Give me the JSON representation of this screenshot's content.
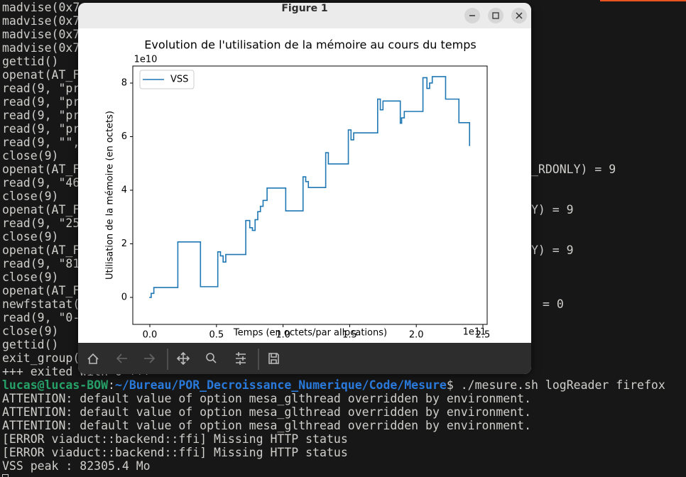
{
  "terminal": {
    "lines": [
      "madvise(0x7",
      "madvise(0x7",
      "madvise(0x7",
      "madvise(0x7",
      "gettid()",
      "openat(AT_F",
      "read(9, \"pr",
      "read(9, \"pr",
      "read(9, \"pr",
      "read(9, \"pr",
      "read(9, \"\",",
      "close(9)",
      "openat(AT_F",
      "read(9, \"46",
      "close(9)",
      "openat(AT_F",
      "read(9, \"25",
      "close(9)",
      "openat(AT_F",
      "read(9, \"81",
      "close(9)",
      "openat(AT_F",
      "newfstatat(",
      "read(9, \"0-",
      "close(9)",
      "gettid()",
      "exit_group(",
      "+++ exited with 0 +++"
    ],
    "right_fragments": [
      "_RDONLY) = 9",
      "Y) = 9",
      "Y) = 9",
      "= 0"
    ],
    "prompt": {
      "user": "lucas@lucas-BOW",
      "sep": ":",
      "path": "~/Bureau/POR_Decroissance_Numerique/Code/Mesure",
      "command": "$ ./mesure.sh logReader firefox"
    },
    "output": [
      "ATTENTION: default value of option mesa_glthread overridden by environment.",
      "ATTENTION: default value of option mesa_glthread overridden by environment.",
      "ATTENTION: default value of option mesa_glthread overridden by environment.",
      "[ERROR viaduct::backend::ffi] Missing HTTP status",
      "[ERROR viaduct::backend::ffi] Missing HTTP status",
      "VSS peak : 82305.4 Mo"
    ]
  },
  "window": {
    "title": "Figure 1"
  },
  "chart_data": {
    "type": "line",
    "drawstyle": "steps-post",
    "title": "Evolution de l'utilisation de la mémoire au cours du temps",
    "xlabel": "Temps (en octets/par allocations)",
    "ylabel": "Utilisation de la mémoire (en octets)",
    "x_offset_label": "1e11",
    "y_offset_label": "1e10",
    "x": [
      0,
      0.01,
      0.03,
      0.21,
      0.38,
      0.51,
      0.53,
      0.55,
      0.57,
      0.72,
      0.75,
      0.77,
      0.79,
      0.81,
      0.83,
      0.85,
      0.88,
      1.02,
      1.15,
      1.17,
      1.19,
      1.32,
      1.34,
      1.49,
      1.51,
      1.53,
      1.71,
      1.73,
      1.75,
      1.88,
      1.89,
      1.91,
      2.05,
      2.08,
      2.1,
      2.12,
      2.22,
      2.32,
      2.4
    ],
    "series": [
      {
        "name": "VSS",
        "color": "#1f77b4",
        "values": [
          0.0,
          0.15,
          0.37,
          2.07,
          0.4,
          1.7,
          1.55,
          1.32,
          1.6,
          2.87,
          2.6,
          2.5,
          2.9,
          3.2,
          3.4,
          3.62,
          4.08,
          3.23,
          4.5,
          4.32,
          4.1,
          5.4,
          4.98,
          6.25,
          5.88,
          6.14,
          7.4,
          7.0,
          7.33,
          6.5,
          6.7,
          6.94,
          8.2,
          7.8,
          8.0,
          8.24,
          7.4,
          6.52,
          5.67
        ]
      }
    ],
    "xlim": [
      -0.128,
      2.532
    ],
    "ylim": [
      -1.007,
      8.635
    ],
    "xticks": [
      {
        "value": 0,
        "label": "0.0"
      },
      0.5,
      {
        "value": 1,
        "label": "1.0"
      },
      1.5,
      {
        "value": 2,
        "label": "2.0"
      },
      2.5
    ],
    "yticks": [
      0,
      2,
      4,
      6,
      8
    ],
    "legend": "upper left",
    "grid": false
  }
}
